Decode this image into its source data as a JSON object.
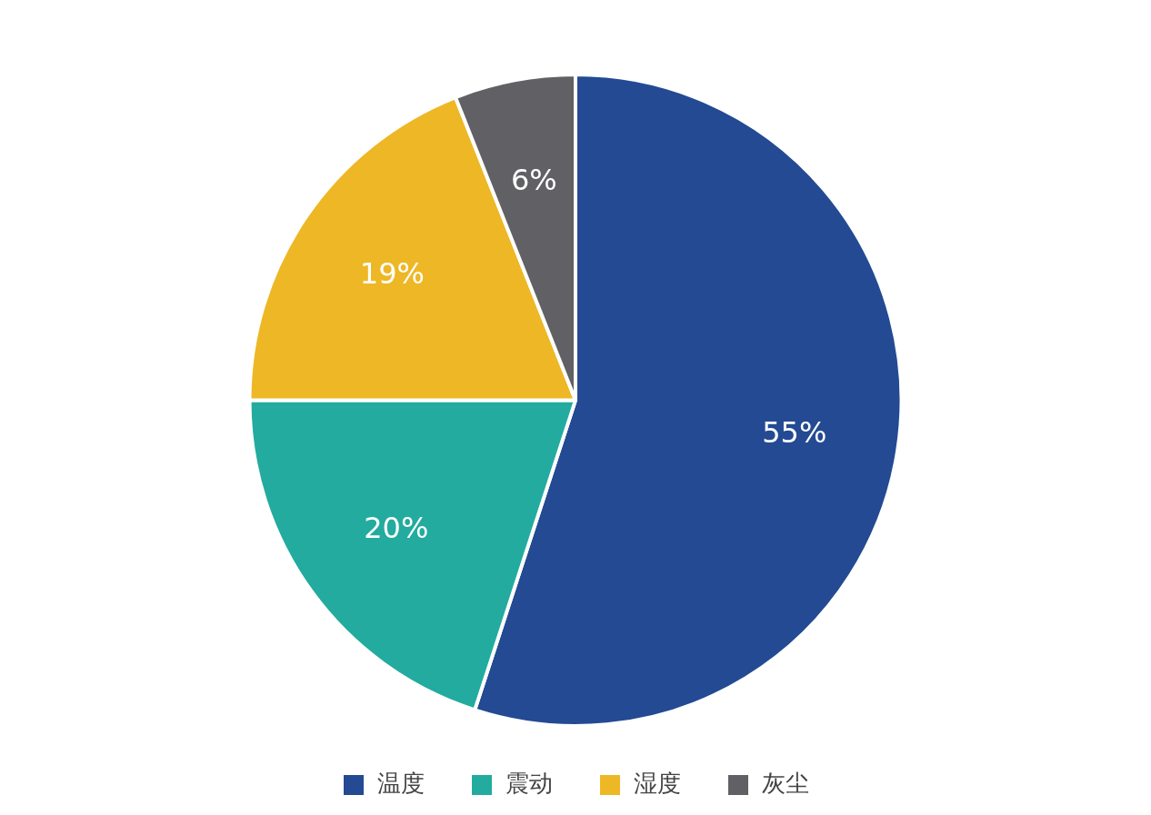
{
  "chart_data": {
    "type": "pie",
    "categories": [
      "温度",
      "震动",
      "湿度",
      "灰尘"
    ],
    "values": [
      55,
      20,
      19,
      6
    ],
    "colors": [
      "#234a93",
      "#23ab9f",
      "#eeb725",
      "#616064"
    ],
    "value_labels": [
      "55%",
      "20%",
      "19%",
      "6%"
    ],
    "legend": "bottom"
  }
}
